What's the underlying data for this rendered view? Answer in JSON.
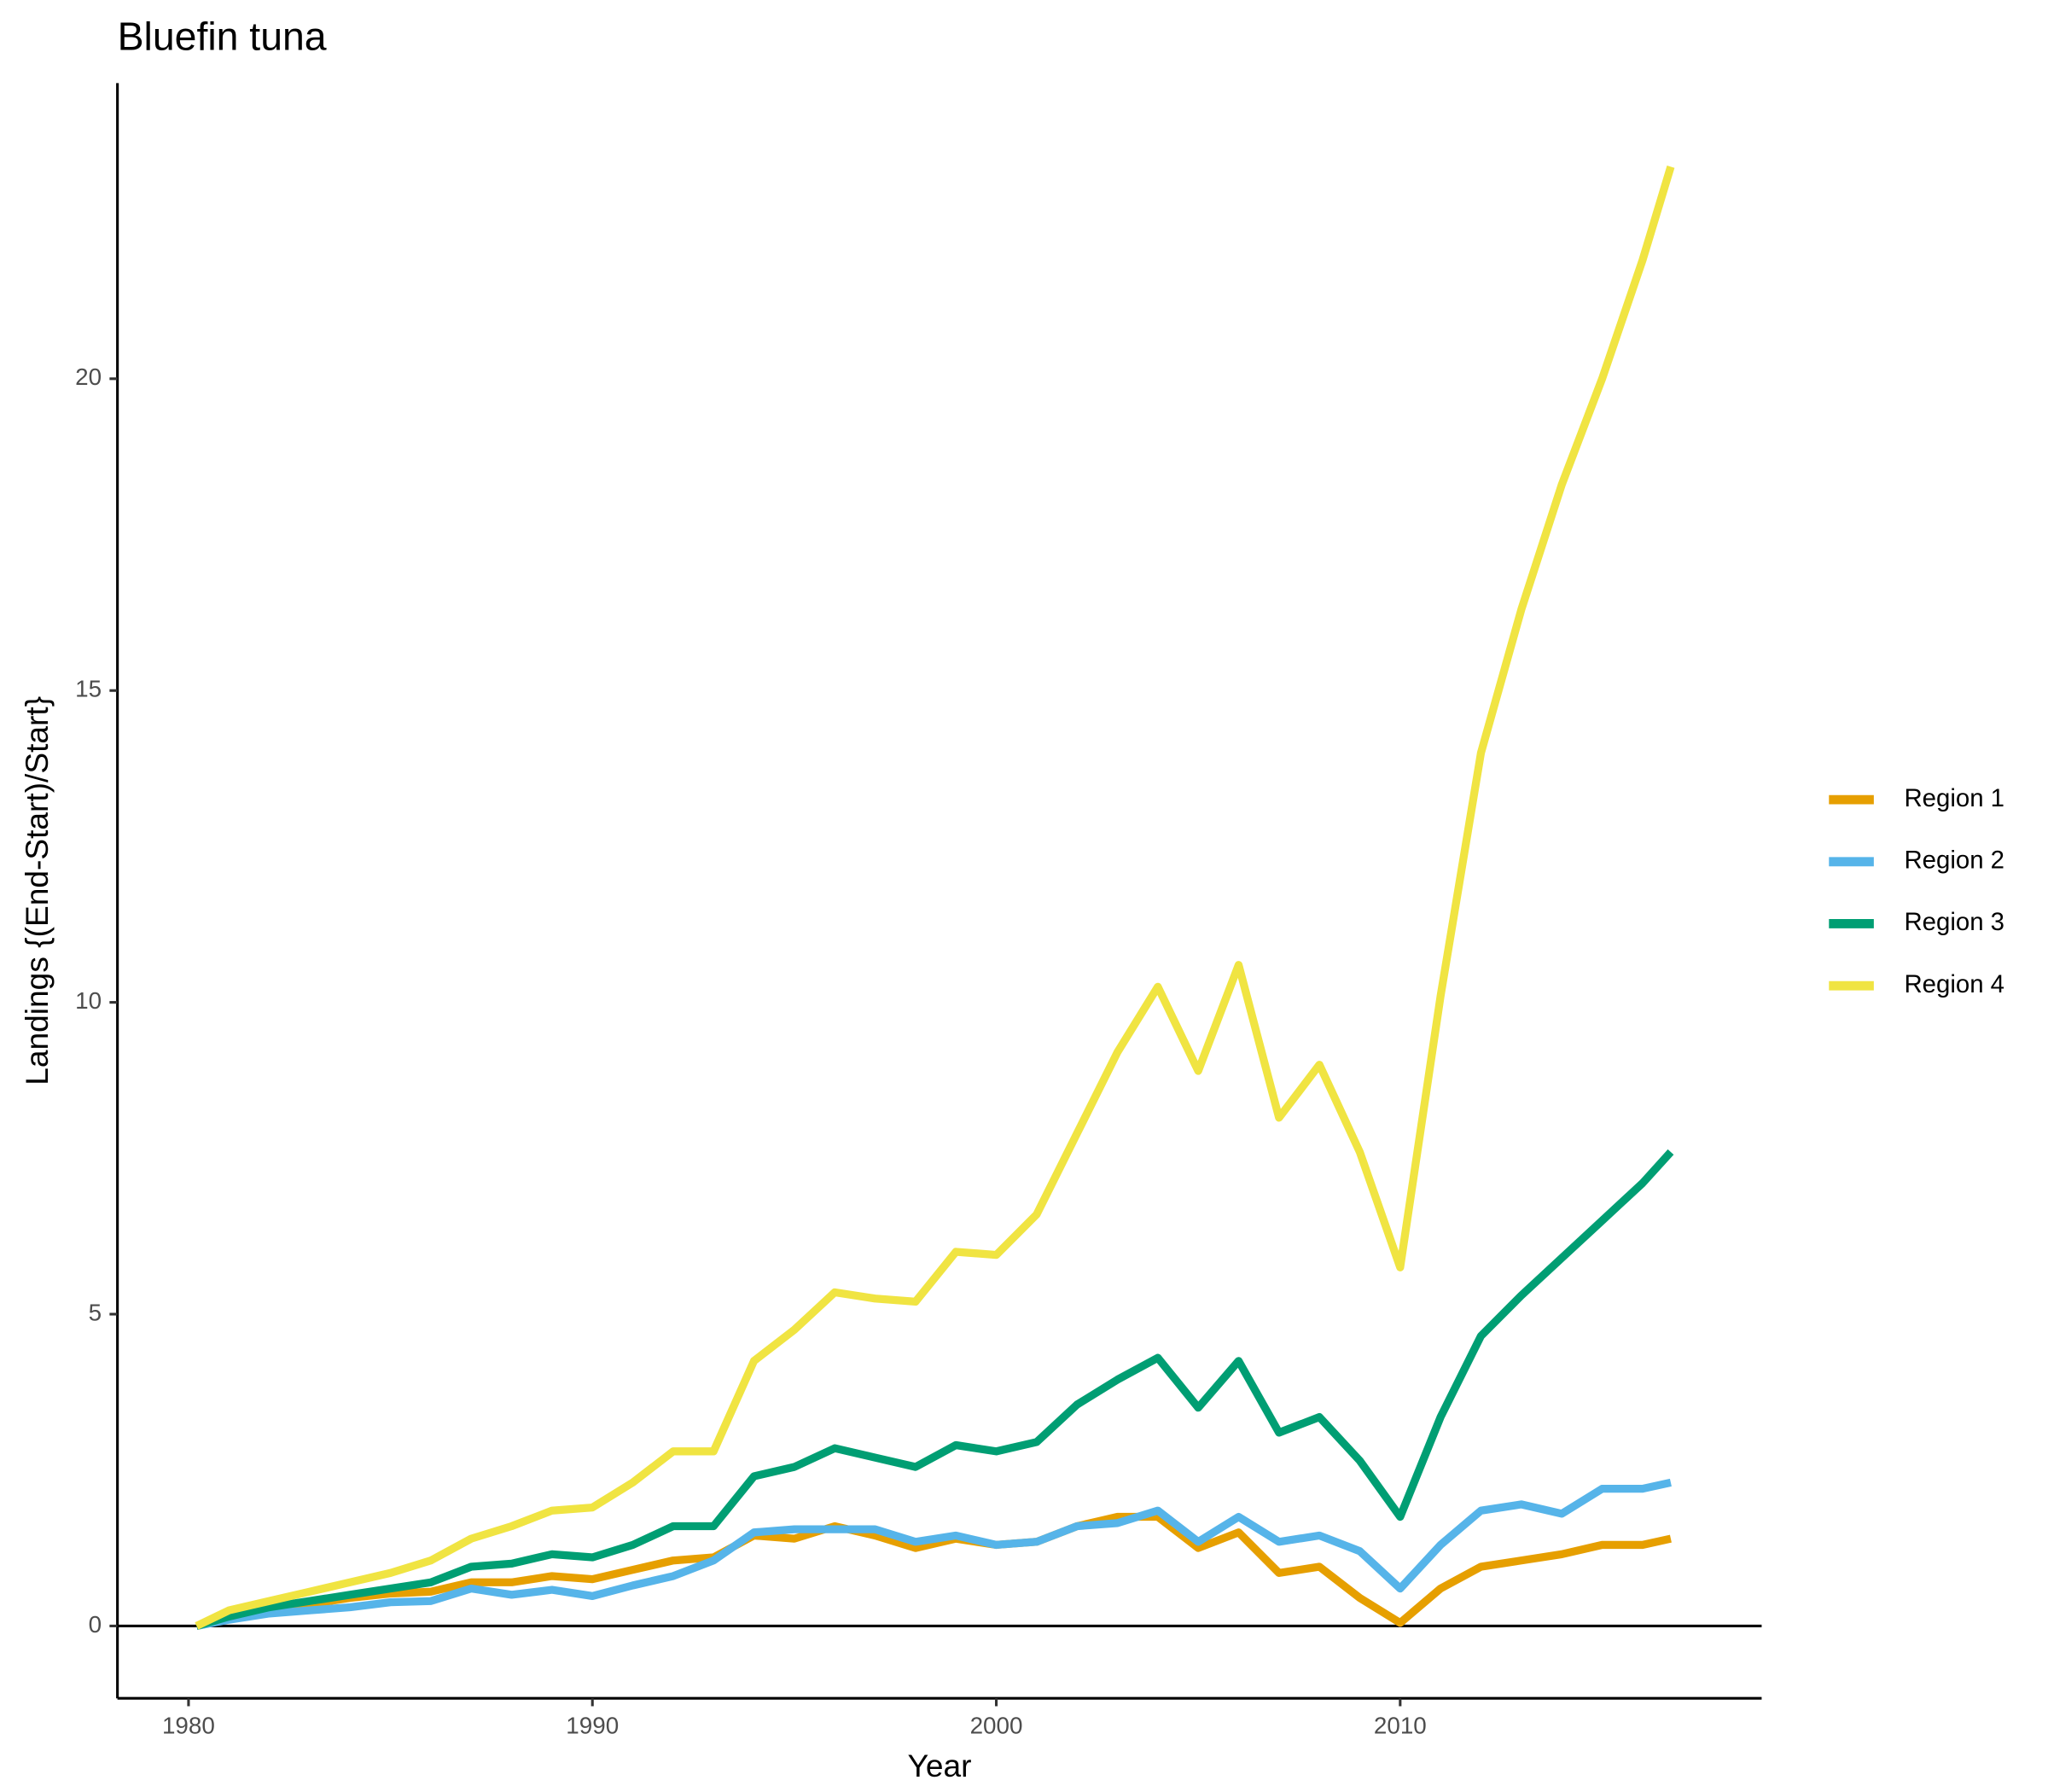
{
  "chart_data": {
    "type": "line",
    "title": "Bluefin tuna",
    "x_label": "Year",
    "y_label": "Landings {(End-Start)/Start}",
    "x": [
      1980.2,
      1981,
      1982,
      1983,
      1984,
      1985,
      1986,
      1987,
      1988,
      1989,
      1990,
      1991,
      1992,
      1993,
      1994,
      1995,
      1996,
      1997,
      1998,
      1999,
      2000,
      2001,
      2002,
      2003,
      2004,
      2005,
      2006,
      2007,
      2008,
      2009,
      2010,
      2011,
      2012,
      2013,
      2014,
      2015,
      2016,
      2016.7
    ],
    "series": [
      {
        "name": "Region 1",
        "color": "#e69f00",
        "values": [
          0,
          0.12,
          0.25,
          0.35,
          0.45,
          0.52,
          0.55,
          0.7,
          0.7,
          0.8,
          0.75,
          0.9,
          1.05,
          1.1,
          1.45,
          1.4,
          1.6,
          1.45,
          1.25,
          1.4,
          1.3,
          1.35,
          1.6,
          1.75,
          1.75,
          1.25,
          1.5,
          0.85,
          0.95,
          0.45,
          0.05,
          0.6,
          0.95,
          1.05,
          1.15,
          1.3,
          1.3,
          1.4
        ]
      },
      {
        "name": "Region 2",
        "color": "#56b4e9",
        "values": [
          0,
          0.1,
          0.2,
          0.25,
          0.3,
          0.38,
          0.4,
          0.6,
          0.5,
          0.58,
          0.48,
          0.65,
          0.8,
          1.05,
          1.5,
          1.55,
          1.55,
          1.55,
          1.35,
          1.45,
          1.3,
          1.35,
          1.6,
          1.65,
          1.85,
          1.35,
          1.75,
          1.35,
          1.45,
          1.2,
          0.6,
          1.3,
          1.85,
          1.95,
          1.8,
          2.2,
          2.2,
          2.3
        ]
      },
      {
        "name": "Region 3",
        "color": "#009e73",
        "values": [
          0,
          0.15,
          0.3,
          0.4,
          0.5,
          0.6,
          0.7,
          0.95,
          1.0,
          1.15,
          1.1,
          1.3,
          1.6,
          1.6,
          2.4,
          2.55,
          2.85,
          2.7,
          2.55,
          2.9,
          2.8,
          2.95,
          3.55,
          3.95,
          4.3,
          3.5,
          4.25,
          3.1,
          3.35,
          2.65,
          1.75,
          3.35,
          4.65,
          5.3,
          5.9,
          6.5,
          7.1,
          7.6
        ]
      },
      {
        "name": "Region 4",
        "color": "#f0e442",
        "values": [
          0,
          0.25,
          0.4,
          0.55,
          0.7,
          0.85,
          1.05,
          1.4,
          1.6,
          1.85,
          1.9,
          2.3,
          2.8,
          2.8,
          4.25,
          4.75,
          5.35,
          5.25,
          5.2,
          6.0,
          5.95,
          6.6,
          7.9,
          9.2,
          10.25,
          8.9,
          10.6,
          8.15,
          9.0,
          7.6,
          5.75,
          10.1,
          14.0,
          16.3,
          18.3,
          20.0,
          21.9,
          23.4
        ]
      }
    ],
    "xlim": [
      1978.24,
      2018.95
    ],
    "xticks": [
      1980,
      1990,
      2000,
      2010
    ],
    "ylim": [
      -1.16,
      24.74
    ],
    "yticks": [
      0,
      5,
      10,
      15,
      20
    ],
    "hline": 0,
    "grid": false,
    "legend": "right"
  }
}
